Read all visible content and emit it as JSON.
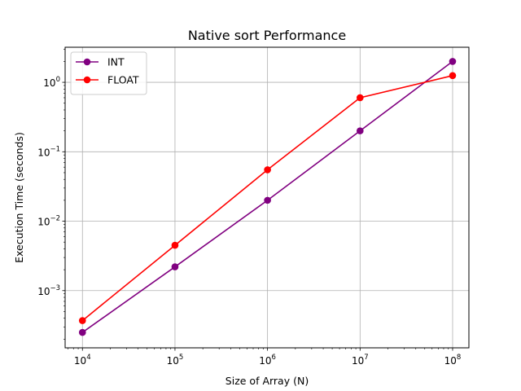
{
  "chart_data": {
    "type": "line",
    "title": "Native sort Performance",
    "xlabel": "Size of Array (N)",
    "ylabel": "Execution Time (seconds)",
    "xscale": "log",
    "yscale": "log",
    "x": [
      10000,
      100000,
      1000000,
      10000000,
      100000000
    ],
    "xlim": [
      6500,
      150000000
    ],
    "ylim": [
      0.00015,
      3.2
    ],
    "x_ticks": [
      {
        "value": 10000,
        "base": "10",
        "exp": "4"
      },
      {
        "value": 100000,
        "base": "10",
        "exp": "5"
      },
      {
        "value": 1000000,
        "base": "10",
        "exp": "6"
      },
      {
        "value": 10000000,
        "base": "10",
        "exp": "7"
      },
      {
        "value": 100000000,
        "base": "10",
        "exp": "8"
      }
    ],
    "y_ticks": [
      {
        "value": 0.001,
        "base": "10",
        "exp": "−3"
      },
      {
        "value": 0.01,
        "base": "10",
        "exp": "−2"
      },
      {
        "value": 0.1,
        "base": "10",
        "exp": "−1"
      },
      {
        "value": 1,
        "base": "10",
        "exp": "0"
      }
    ],
    "grid": true,
    "legend_position": "top-left",
    "series": [
      {
        "name": "INT",
        "color": "#800080",
        "values": [
          0.00025,
          0.0022,
          0.02,
          0.2,
          2.0
        ]
      },
      {
        "name": "FLOAT",
        "color": "#ff0000",
        "values": [
          0.00037,
          0.0045,
          0.055,
          0.6,
          1.25
        ]
      }
    ]
  }
}
